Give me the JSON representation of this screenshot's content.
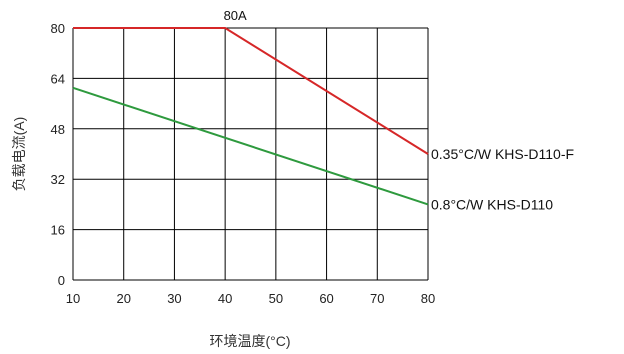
{
  "chart_data": {
    "type": "line",
    "title": "",
    "xlabel": "环境温度(°C)",
    "ylabel": "负载电流(A)",
    "xlim": [
      10,
      80
    ],
    "ylim": [
      0,
      80
    ],
    "x_ticks": [
      10,
      20,
      30,
      40,
      50,
      60,
      70,
      80
    ],
    "y_ticks": [
      0,
      16,
      32,
      48,
      64,
      80
    ],
    "grid": true,
    "series": [
      {
        "name": "0.35°C/W  KHS-D110-F",
        "color": "#d62728",
        "x": [
          10,
          40,
          80
        ],
        "y": [
          80,
          80,
          40
        ]
      },
      {
        "name": "0.8°C/W  KHS-D110",
        "color": "#2e9a3e",
        "x": [
          10,
          80
        ],
        "y": [
          61,
          24
        ]
      }
    ],
    "annotations": [
      {
        "text": "80A",
        "x": 40,
        "y": 80
      }
    ]
  }
}
